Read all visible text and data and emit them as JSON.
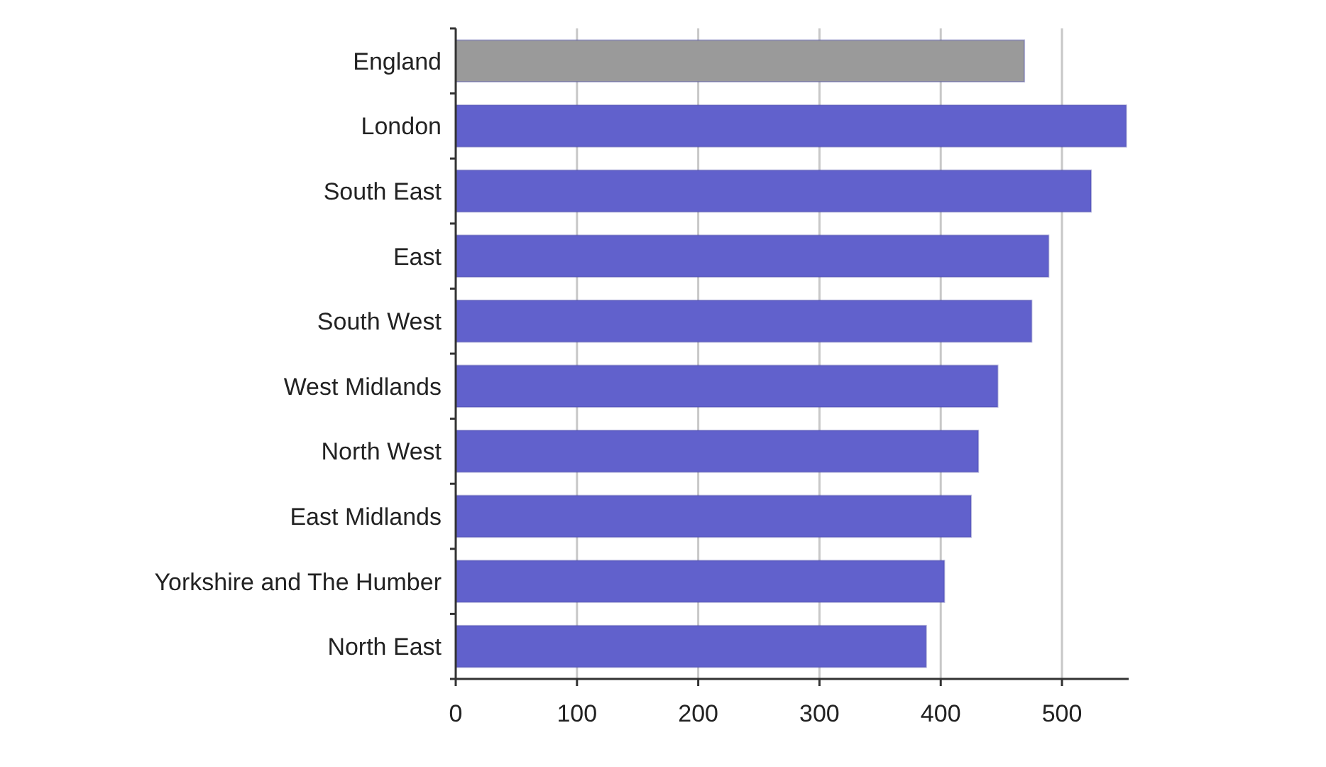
{
  "chart_data": {
    "type": "bar",
    "orientation": "horizontal",
    "categories": [
      "England",
      "London",
      "South East",
      "East",
      "South West",
      "West Midlands",
      "North West",
      "East Midlands",
      "Yorkshire and The Humber",
      "North East"
    ],
    "values": [
      469,
      553,
      524,
      489,
      475,
      447,
      431,
      425,
      403,
      388
    ],
    "colors": [
      "#9a9a9a",
      "#6161cc",
      "#6161cc",
      "#6161cc",
      "#6161cc",
      "#6161cc",
      "#6161cc",
      "#6161cc",
      "#6161cc",
      "#6161cc"
    ],
    "xlim": [
      0,
      555
    ],
    "xticks": [
      0,
      100,
      200,
      300,
      400,
      500
    ],
    "grid": "x"
  }
}
